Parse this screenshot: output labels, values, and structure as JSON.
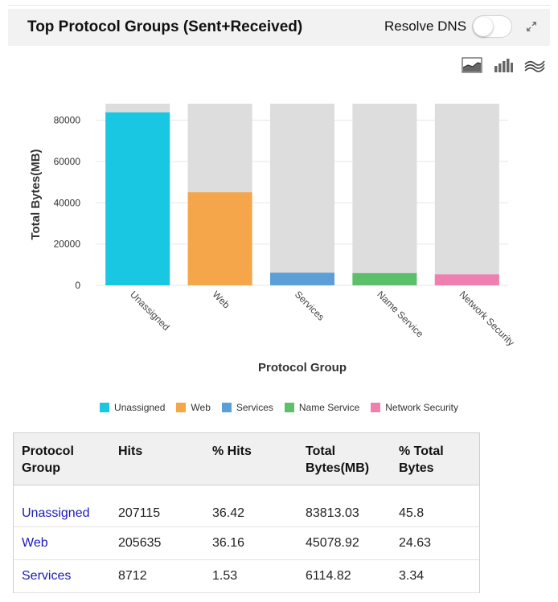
{
  "header": {
    "title": "Top Protocol Groups (Sent+Received)",
    "resolve_dns_label": "Resolve DNS",
    "resolve_dns_on": false
  },
  "chart_icons": [
    "area-chart-icon",
    "bar-chart-icon",
    "line-chart-icon"
  ],
  "chart_data": {
    "type": "bar",
    "categories": [
      "Unassigned",
      "Web",
      "Services",
      "Name Service",
      "Network Security"
    ],
    "values": [
      83813.03,
      45078.92,
      6114.82,
      5900,
      5300
    ],
    "colors": [
      "#1ac7e3",
      "#f5a64a",
      "#5b9fd6",
      "#5cbf6a",
      "#ef7fae"
    ],
    "track_color": "#dddddd",
    "xlabel": "Protocol Group",
    "ylabel": "Total Bytes(MB)",
    "ylim": [
      0,
      88000
    ],
    "yticks": [
      0,
      20000,
      40000,
      60000,
      80000
    ],
    "grid": true,
    "legend": "bottom"
  },
  "table": {
    "headers": [
      "Protocol Group",
      "Hits",
      "% Hits",
      "Total Bytes(MB)",
      "% Total Bytes"
    ],
    "rows": [
      [
        "Unassigned",
        "207115",
        "36.42",
        "83813.03",
        "45.8"
      ],
      [
        "Web",
        "205635",
        "36.16",
        "45078.92",
        "24.63"
      ],
      [
        "Services",
        "8712",
        "1.53",
        "6114.82",
        "3.34"
      ]
    ]
  }
}
